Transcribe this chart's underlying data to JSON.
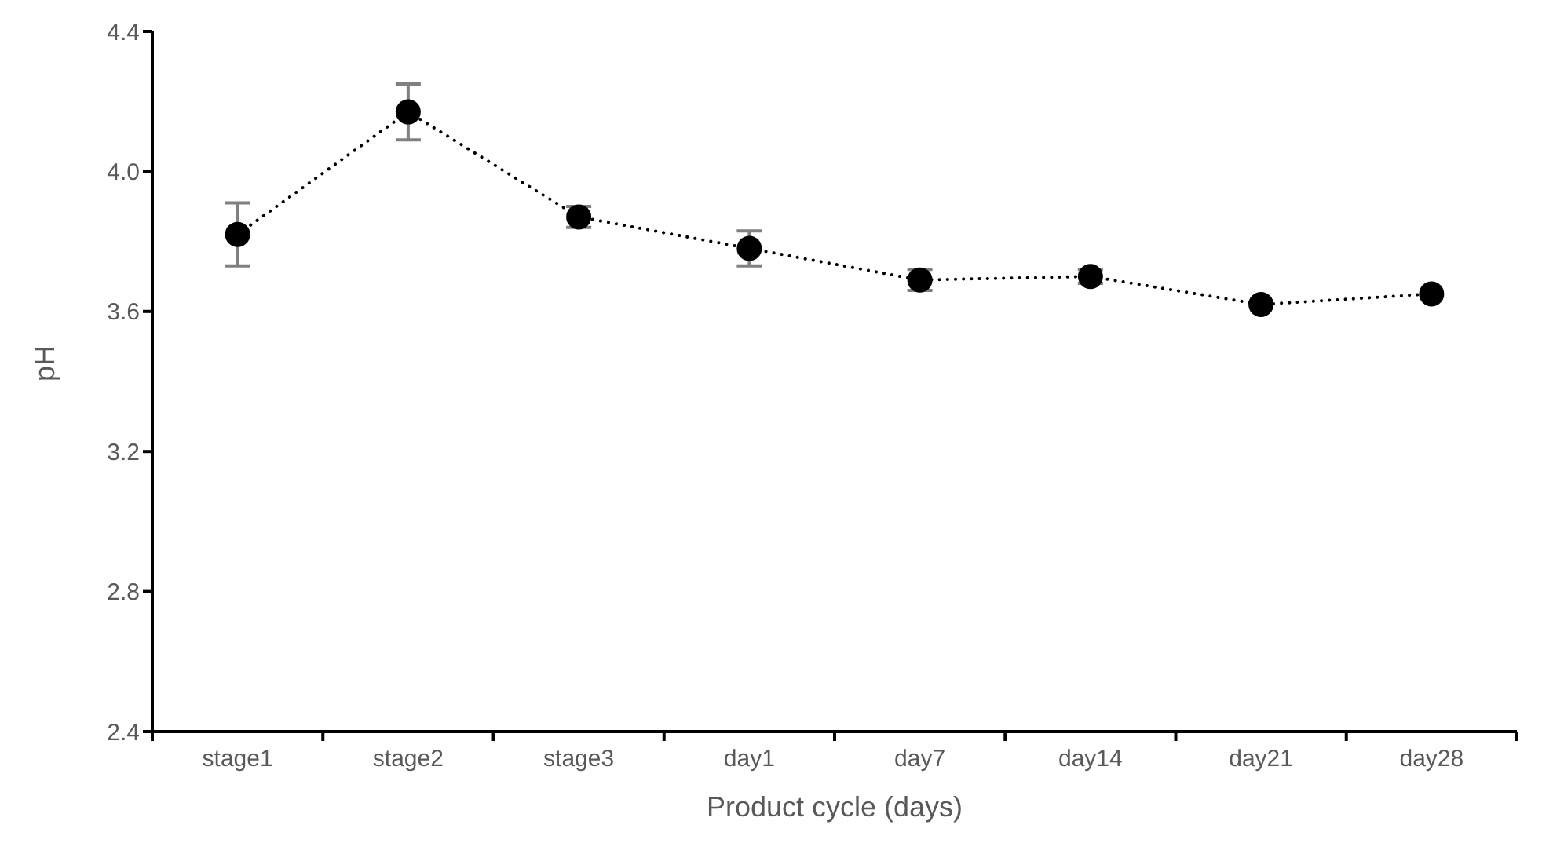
{
  "chart_data": {
    "type": "line",
    "xlabel": "Product cycle (days)",
    "ylabel": "pH",
    "categories": [
      "stage1",
      "stage2",
      "stage3",
      "day1",
      "day7",
      "day14",
      "day21",
      "day28"
    ],
    "series": [
      {
        "color": "#000000",
        "values": [
          3.82,
          4.17,
          3.87,
          3.78,
          3.69,
          3.7,
          3.62,
          3.65
        ],
        "errors": [
          0.09,
          0.08,
          0.03,
          0.05,
          0.03,
          0.02,
          null,
          null
        ]
      }
    ],
    "ylim": [
      2.4,
      4.4
    ],
    "yticks": [
      2.4,
      2.8,
      3.2,
      3.6,
      {
        "value": 4,
        "label": "4.0"
      },
      4.4
    ],
    "marker": "circle",
    "line_style": "dotted"
  }
}
